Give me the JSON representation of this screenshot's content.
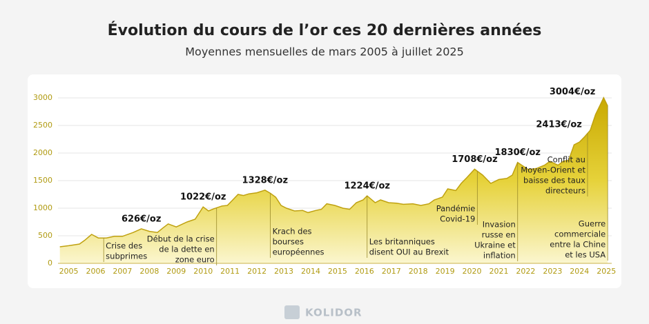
{
  "chart_data": {
    "type": "area",
    "title": "Évolution du cours de l’or ces 20 dernières années",
    "subtitle": "Moyennes mensuelles de mars 2005 à juillet 2025",
    "brand": "KOLIDOR",
    "color": "#bfa10f",
    "x": [
      2005.17,
      2005.5,
      2005.9,
      2006.1,
      2006.35,
      2006.6,
      2006.9,
      2007.2,
      2007.5,
      2007.9,
      2008.2,
      2008.5,
      2008.8,
      2009.0,
      2009.2,
      2009.5,
      2009.9,
      2010.2,
      2010.5,
      2010.7,
      2010.9,
      2011.2,
      2011.4,
      2011.6,
      2011.8,
      2012.0,
      2012.2,
      2012.5,
      2012.8,
      2013.0,
      2013.2,
      2013.4,
      2013.6,
      2013.9,
      2014.2,
      2014.4,
      2014.7,
      2014.9,
      2015.1,
      2015.4,
      2015.7,
      2015.95,
      2016.2,
      2016.45,
      2016.6,
      2016.9,
      2017.1,
      2017.4,
      2017.7,
      2017.95,
      2018.3,
      2018.6,
      2018.9,
      2019.1,
      2019.4,
      2019.6,
      2019.9,
      2020.1,
      2020.3,
      2020.6,
      2020.9,
      2021.2,
      2021.5,
      2021.8,
      2022.0,
      2022.2,
      2022.6,
      2022.9,
      2023.2,
      2023.4,
      2023.7,
      2023.9,
      2024.1,
      2024.3,
      2024.5,
      2024.7,
      2024.9,
      2025.1,
      2025.3,
      2025.4,
      2025.55
    ],
    "values": [
      300,
      320,
      350,
      420,
      525,
      460,
      460,
      490,
      490,
      560,
      626,
      580,
      560,
      640,
      715,
      660,
      750,
      800,
      1022,
      950,
      990,
      1040,
      1050,
      1150,
      1250,
      1230,
      1260,
      1280,
      1328,
      1270,
      1200,
      1050,
      1000,
      950,
      960,
      920,
      960,
      980,
      1080,
      1050,
      1000,
      980,
      1100,
      1150,
      1224,
      1100,
      1150,
      1100,
      1090,
      1070,
      1080,
      1050,
      1080,
      1150,
      1200,
      1350,
      1320,
      1450,
      1550,
      1708,
      1600,
      1450,
      1520,
      1540,
      1600,
      1830,
      1700,
      1720,
      1780,
      1850,
      1780,
      1850,
      1870,
      2150,
      2200,
      2300,
      2413,
      2700,
      2900,
      3004,
      2850
    ],
    "xlim": [
      2005.1,
      2025.7
    ],
    "xticks": [
      {
        "value": 2005.5,
        "label": "2005"
      },
      {
        "value": 2006.5,
        "label": "2006"
      },
      {
        "value": 2007.5,
        "label": "2007"
      },
      {
        "value": 2008.5,
        "label": "2008"
      },
      {
        "value": 2009.5,
        "label": "2009"
      },
      {
        "value": 2010.5,
        "label": "2010"
      },
      {
        "value": 2011.5,
        "label": "2011"
      },
      {
        "value": 2012.5,
        "label": "2012"
      },
      {
        "value": 2013.5,
        "label": "2013"
      },
      {
        "value": 2014.5,
        "label": "2014"
      },
      {
        "value": 2015.5,
        "label": "2015"
      },
      {
        "value": 2016.5,
        "label": "2016"
      },
      {
        "value": 2017.5,
        "label": "2017"
      },
      {
        "value": 2018.5,
        "label": "2018"
      },
      {
        "value": 2019.5,
        "label": "2019"
      },
      {
        "value": 2020.5,
        "label": "2020"
      },
      {
        "value": 2021.5,
        "label": "2021"
      },
      {
        "value": 2022.5,
        "label": "2022"
      },
      {
        "value": 2023.5,
        "label": "2023"
      },
      {
        "value": 2024.5,
        "label": "2024"
      },
      {
        "value": 2025.5,
        "label": "2025"
      }
    ],
    "ylim": [
      0,
      3000
    ],
    "yticks": [
      0,
      500,
      1000,
      1500,
      2000,
      2500,
      3000
    ],
    "grid": true,
    "value_annotations": [
      {
        "x": 2008.2,
        "value": 626,
        "label": "626€/oz"
      },
      {
        "x": 2010.5,
        "value": 1022,
        "label": "1022€/oz"
      },
      {
        "x": 2012.8,
        "value": 1328,
        "label": "1328€/oz"
      },
      {
        "x": 2016.6,
        "value": 1224,
        "label": "1224€/oz"
      },
      {
        "x": 2020.6,
        "value": 1708,
        "label": "1708€/oz"
      },
      {
        "x": 2022.2,
        "value": 1830,
        "label": "1830€/oz"
      },
      {
        "x": 2024.9,
        "value": 2413,
        "label": "2413€/oz"
      },
      {
        "x": 2025.4,
        "value": 3004,
        "label": "3004€/oz"
      }
    ],
    "events": [
      {
        "x": 2006.8,
        "text": [
          "Crise des",
          "subprimes"
        ]
      },
      {
        "x": 2011.0,
        "text": [
          "Début de la crise",
          "de la dette en",
          "zone euro"
        ]
      },
      {
        "x": 2013.0,
        "text": [
          "Krach des",
          "bourses",
          "européennes"
        ]
      },
      {
        "x": 2016.6,
        "text": [
          "Les britanniques",
          "disent OUI au Brexit"
        ]
      },
      {
        "x": 2020.7,
        "text": [
          "Pandémie",
          "Covid-19"
        ]
      },
      {
        "x": 2022.2,
        "text": [
          "Invasion",
          "russe en",
          "Ukraine et",
          "inflation"
        ]
      },
      {
        "x": 2024.8,
        "text": [
          "Conflit au",
          "Moyen-Orient et",
          "baisse des taux",
          "directeurs"
        ]
      },
      {
        "x": 2025.55,
        "text": [
          "Guerre",
          "commerciale",
          "entre la Chine",
          "et les USA"
        ]
      }
    ]
  }
}
